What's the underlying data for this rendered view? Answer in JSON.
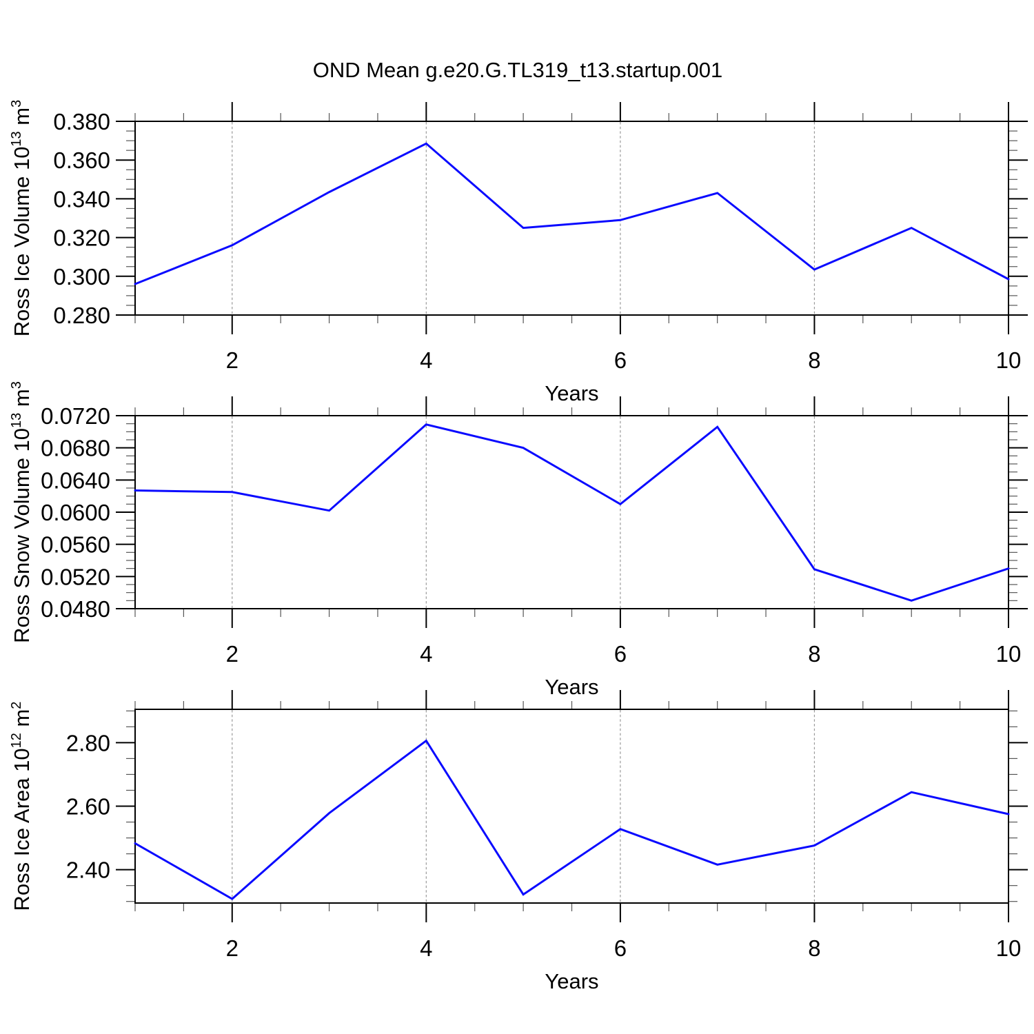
{
  "title": "OND Mean g.e20.G.TL319_t13.startup.001",
  "colors": {
    "line": "#0a0aff",
    "grid": "#999999",
    "axis": "#000000",
    "minor_tick": "#555555",
    "background": "#ffffff"
  },
  "chart_data": [
    {
      "type": "line",
      "title": "OND Mean g.e20.G.TL319_t13.startup.001",
      "ylabel_plain": "Ross Ice Volume 10^13 m^3",
      "ylabel_segments": [
        {
          "text": "Ross Ice Volume 10",
          "sup": false
        },
        {
          "text": "13",
          "sup": true
        },
        {
          "text": " m",
          "sup": false
        },
        {
          "text": "3",
          "sup": true
        }
      ],
      "xlabel": "Years",
      "x": [
        1,
        2,
        3,
        4,
        5,
        6,
        7,
        8,
        9,
        10
      ],
      "values": [
        0.296,
        0.316,
        0.3435,
        0.3685,
        0.325,
        0.329,
        0.343,
        0.3035,
        0.325,
        0.2985
      ],
      "xlim": [
        1,
        10
      ],
      "ylim": [
        0.28,
        0.38
      ],
      "yticks": [
        {
          "value": 0.28,
          "label": "0.280"
        },
        {
          "value": 0.3,
          "label": "0.300"
        },
        {
          "value": 0.32,
          "label": "0.320"
        },
        {
          "value": 0.34,
          "label": "0.340"
        },
        {
          "value": 0.36,
          "label": "0.360"
        },
        {
          "value": 0.38,
          "label": "0.380"
        }
      ],
      "ytick_minor_step": 0.005,
      "xticks": [
        {
          "value": 2,
          "label": "2"
        },
        {
          "value": 4,
          "label": "4"
        },
        {
          "value": 6,
          "label": "6"
        },
        {
          "value": 8,
          "label": "8"
        },
        {
          "value": 10,
          "label": "10"
        }
      ],
      "xtick_minor_step": 0.5,
      "grid_x": [
        2,
        4,
        6,
        8
      ],
      "grid_style": "vertical-dashed",
      "legend": "none"
    },
    {
      "type": "line",
      "ylabel_plain": "Ross Snow Volume 10^13 m^3",
      "ylabel_segments": [
        {
          "text": "Ross Snow Volume 10",
          "sup": false
        },
        {
          "text": "13",
          "sup": true
        },
        {
          "text": " m",
          "sup": false
        },
        {
          "text": "3",
          "sup": true
        }
      ],
      "xlabel": "Years",
      "x": [
        1,
        2,
        3,
        4,
        5,
        6,
        7,
        8,
        9,
        10
      ],
      "values": [
        0.0627,
        0.0625,
        0.0602,
        0.0709,
        0.068,
        0.061,
        0.0706,
        0.0529,
        0.049,
        0.053
      ],
      "xlim": [
        1,
        10
      ],
      "ylim": [
        0.048,
        0.072
      ],
      "yticks": [
        {
          "value": 0.048,
          "label": "0.0480"
        },
        {
          "value": 0.052,
          "label": "0.0520"
        },
        {
          "value": 0.056,
          "label": "0.0560"
        },
        {
          "value": 0.06,
          "label": "0.0600"
        },
        {
          "value": 0.064,
          "label": "0.0640"
        },
        {
          "value": 0.068,
          "label": "0.0680"
        },
        {
          "value": 0.072,
          "label": "0.0720"
        }
      ],
      "ytick_minor_step": 0.001,
      "xticks": [
        {
          "value": 2,
          "label": "2"
        },
        {
          "value": 4,
          "label": "4"
        },
        {
          "value": 6,
          "label": "6"
        },
        {
          "value": 8,
          "label": "8"
        },
        {
          "value": 10,
          "label": "10"
        }
      ],
      "xtick_minor_step": 0.5,
      "grid_x": [
        2,
        4,
        6,
        8
      ],
      "grid_style": "vertical-dashed",
      "legend": "none"
    },
    {
      "type": "line",
      "ylabel_plain": "Ross Ice Area 10^12 m^2",
      "ylabel_segments": [
        {
          "text": "Ross Ice Area 10",
          "sup": false
        },
        {
          "text": "12",
          "sup": true
        },
        {
          "text": " m",
          "sup": false
        },
        {
          "text": "2",
          "sup": true
        }
      ],
      "xlabel": "Years",
      "x": [
        1,
        2,
        3,
        4,
        5,
        6,
        7,
        8,
        9,
        10
      ],
      "values": [
        2.483,
        2.308,
        2.578,
        2.806,
        2.322,
        2.528,
        2.416,
        2.476,
        2.644,
        2.575
      ],
      "xlim": [
        1,
        10
      ],
      "ylim": [
        2.295,
        2.905
      ],
      "yticks": [
        {
          "value": 2.4,
          "label": "2.40"
        },
        {
          "value": 2.6,
          "label": "2.60"
        },
        {
          "value": 2.8,
          "label": "2.80"
        }
      ],
      "ytick_minor_step": 0.05,
      "xticks": [
        {
          "value": 2,
          "label": "2"
        },
        {
          "value": 4,
          "label": "4"
        },
        {
          "value": 6,
          "label": "6"
        },
        {
          "value": 8,
          "label": "8"
        },
        {
          "value": 10,
          "label": "10"
        }
      ],
      "xtick_minor_step": 0.5,
      "grid_x": [
        2,
        4,
        6,
        8
      ],
      "grid_style": "vertical-dashed",
      "legend": "none"
    }
  ]
}
